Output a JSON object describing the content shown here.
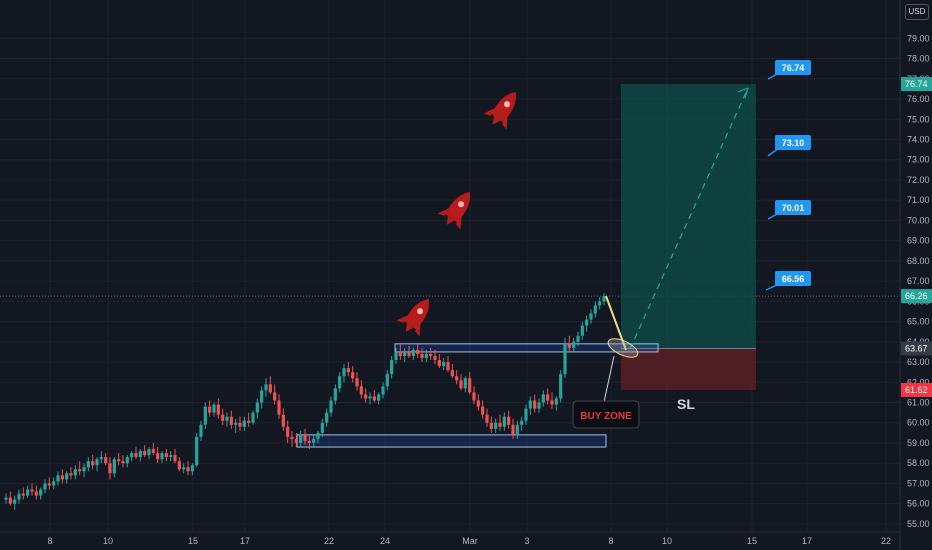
{
  "currency": "USD",
  "colors": {
    "background": "#131722",
    "grid": "#1e222d",
    "axis_text": "#b2b5be",
    "up_candle": "#26a69a",
    "down_candle": "#ef5350",
    "zone_fill": "#2962ff",
    "zone_border": "#9cc4ec",
    "target_box": "#0e4f4a",
    "stop_box": "#5a1f24",
    "label_bg": "#2196f3",
    "last_price": "#26a69a",
    "stop_price": "#f23645",
    "rocket": "#b71c1c",
    "pointer_line": "#f2d98c"
  },
  "chart_data": {
    "type": "candlestick",
    "price_axis_ticks": [
      "79.00",
      "78.00",
      "77.00",
      "76.00",
      "75.00",
      "74.00",
      "73.00",
      "72.00",
      "71.00",
      "70.00",
      "69.00",
      "68.00",
      "67.00",
      "66.00",
      "65.00",
      "64.00",
      "63.00",
      "62.00",
      "61.00",
      "60.00",
      "59.00",
      "58.00",
      "57.00",
      "56.00",
      "55.00"
    ],
    "time_axis_labels": [
      "8",
      "10",
      "15",
      "17",
      "22",
      "24",
      "Mar",
      "3",
      "8",
      "10",
      "15",
      "17",
      "22"
    ],
    "ylim": [
      54.6,
      80.4
    ],
    "last_price": "66.26",
    "entry_price": "63.67",
    "stop_price": "61.62",
    "target_price": "76.74",
    "target_labels": [
      "76.74",
      "73.10",
      "70.01",
      "66.56"
    ],
    "buy_zone_label": "BUY ZONE",
    "stop_label": "SL",
    "annotations": {
      "buy_zone_range": [
        63.5,
        63.9
      ],
      "support_range": [
        58.8,
        59.4
      ]
    },
    "candles": [
      [
        56.2,
        56.5,
        56.0,
        56.3
      ],
      [
        56.3,
        56.6,
        55.9,
        56.0
      ],
      [
        56.0,
        56.4,
        55.7,
        56.2
      ],
      [
        56.2,
        56.7,
        56.0,
        56.5
      ],
      [
        56.5,
        56.8,
        56.2,
        56.4
      ],
      [
        56.4,
        56.9,
        56.3,
        56.7
      ],
      [
        56.7,
        57.0,
        56.4,
        56.6
      ],
      [
        56.6,
        56.9,
        56.2,
        56.4
      ],
      [
        56.4,
        56.8,
        56.2,
        56.7
      ],
      [
        56.7,
        57.2,
        56.5,
        57.0
      ],
      [
        57.0,
        57.3,
        56.7,
        56.9
      ],
      [
        56.9,
        57.3,
        56.7,
        57.1
      ],
      [
        57.1,
        57.6,
        56.9,
        57.4
      ],
      [
        57.4,
        57.7,
        57.0,
        57.2
      ],
      [
        57.2,
        57.6,
        57.0,
        57.5
      ],
      [
        57.5,
        57.8,
        57.2,
        57.4
      ],
      [
        57.4,
        57.9,
        57.2,
        57.7
      ],
      [
        57.7,
        58.1,
        57.4,
        57.6
      ],
      [
        57.6,
        58.0,
        57.3,
        57.8
      ],
      [
        57.8,
        58.3,
        57.6,
        58.1
      ],
      [
        58.1,
        58.4,
        57.7,
        57.9
      ],
      [
        57.9,
        58.3,
        57.6,
        58.2
      ],
      [
        58.2,
        58.6,
        58.0,
        58.3
      ],
      [
        58.3,
        58.5,
        57.9,
        58.0
      ],
      [
        58.0,
        58.3,
        57.2,
        57.5
      ],
      [
        57.5,
        58.3,
        57.3,
        58.2
      ],
      [
        58.2,
        58.5,
        57.9,
        58.1
      ],
      [
        58.1,
        58.4,
        57.8,
        58.0
      ],
      [
        58.0,
        58.4,
        57.8,
        58.3
      ],
      [
        58.3,
        58.6,
        58.1,
        58.5
      ],
      [
        58.5,
        58.8,
        58.2,
        58.3
      ],
      [
        58.3,
        58.7,
        58.1,
        58.6
      ],
      [
        58.6,
        58.9,
        58.3,
        58.4
      ],
      [
        58.4,
        58.8,
        58.2,
        58.7
      ],
      [
        58.7,
        59.0,
        58.4,
        58.5
      ],
      [
        58.5,
        58.8,
        58.0,
        58.2
      ],
      [
        58.2,
        58.6,
        58.0,
        58.5
      ],
      [
        58.5,
        58.7,
        58.1,
        58.3
      ],
      [
        58.3,
        58.6,
        58.1,
        58.4
      ],
      [
        58.4,
        58.7,
        58.0,
        58.1
      ],
      [
        58.1,
        58.3,
        57.6,
        57.7
      ],
      [
        57.7,
        58.0,
        57.5,
        57.8
      ],
      [
        57.8,
        58.1,
        57.4,
        57.6
      ],
      [
        57.6,
        58.0,
        57.4,
        57.9
      ],
      [
        57.9,
        59.5,
        57.8,
        59.3
      ],
      [
        59.3,
        60.1,
        59.1,
        59.9
      ],
      [
        59.9,
        61.0,
        59.7,
        60.8
      ],
      [
        60.8,
        61.1,
        60.3,
        60.5
      ],
      [
        60.5,
        61.0,
        60.3,
        60.9
      ],
      [
        60.9,
        61.2,
        60.2,
        60.4
      ],
      [
        60.4,
        60.7,
        59.9,
        60.1
      ],
      [
        60.1,
        60.5,
        59.8,
        60.3
      ],
      [
        60.3,
        60.6,
        59.7,
        59.9
      ],
      [
        59.9,
        60.2,
        59.5,
        60.0
      ],
      [
        60.0,
        60.3,
        59.6,
        59.8
      ],
      [
        59.8,
        60.3,
        59.6,
        60.1
      ],
      [
        60.1,
        60.5,
        59.8,
        60.0
      ],
      [
        60.0,
        60.6,
        59.9,
        60.5
      ],
      [
        60.5,
        61.2,
        60.2,
        61.0
      ],
      [
        61.0,
        61.8,
        60.7,
        61.6
      ],
      [
        61.6,
        62.2,
        61.3,
        61.9
      ],
      [
        61.9,
        62.3,
        61.4,
        61.5
      ],
      [
        61.5,
        61.9,
        60.9,
        61.1
      ],
      [
        61.1,
        61.4,
        60.2,
        60.4
      ],
      [
        60.4,
        60.7,
        59.6,
        59.8
      ],
      [
        59.8,
        60.1,
        59.0,
        59.3
      ],
      [
        59.3,
        59.6,
        58.8,
        59.2
      ],
      [
        59.2,
        59.5,
        58.8,
        59.0
      ],
      [
        59.0,
        59.6,
        58.8,
        59.4
      ],
      [
        59.4,
        59.7,
        58.9,
        59.1
      ],
      [
        59.1,
        59.4,
        58.7,
        59.0
      ],
      [
        59.0,
        59.4,
        58.8,
        59.2
      ],
      [
        59.2,
        59.6,
        59.0,
        59.5
      ],
      [
        59.5,
        60.2,
        59.3,
        60.0
      ],
      [
        60.0,
        60.7,
        59.8,
        60.5
      ],
      [
        60.5,
        61.3,
        60.3,
        61.1
      ],
      [
        61.1,
        61.9,
        60.9,
        61.7
      ],
      [
        61.7,
        62.5,
        61.5,
        62.3
      ],
      [
        62.3,
        62.9,
        62.0,
        62.7
      ],
      [
        62.7,
        63.0,
        62.3,
        62.5
      ],
      [
        62.5,
        62.8,
        62.0,
        62.2
      ],
      [
        62.2,
        62.5,
        61.6,
        61.8
      ],
      [
        61.8,
        62.1,
        61.2,
        61.4
      ],
      [
        61.4,
        61.7,
        61.0,
        61.2
      ],
      [
        61.2,
        61.5,
        60.9,
        61.3
      ],
      [
        61.3,
        61.6,
        61.0,
        61.1
      ],
      [
        61.1,
        61.5,
        60.9,
        61.4
      ],
      [
        61.4,
        62.0,
        61.2,
        61.8
      ],
      [
        61.8,
        62.6,
        61.6,
        62.4
      ],
      [
        62.4,
        63.3,
        62.2,
        63.1
      ],
      [
        63.1,
        63.7,
        62.9,
        63.5
      ],
      [
        63.5,
        63.9,
        63.1,
        63.3
      ],
      [
        63.3,
        63.7,
        63.0,
        63.5
      ],
      [
        63.5,
        63.8,
        63.2,
        63.3
      ],
      [
        63.3,
        63.7,
        63.1,
        63.6
      ],
      [
        63.6,
        63.9,
        63.2,
        63.4
      ],
      [
        63.4,
        63.7,
        63.0,
        63.2
      ],
      [
        63.2,
        63.6,
        63.0,
        63.4
      ],
      [
        63.4,
        63.7,
        63.1,
        63.3
      ],
      [
        63.3,
        63.6,
        62.9,
        63.1
      ],
      [
        63.1,
        63.4,
        62.7,
        62.8
      ],
      [
        62.8,
        63.2,
        62.6,
        63.0
      ],
      [
        63.0,
        63.3,
        62.5,
        62.6
      ],
      [
        62.6,
        62.9,
        62.2,
        62.3
      ],
      [
        62.3,
        62.6,
        61.9,
        62.1
      ],
      [
        62.1,
        62.4,
        61.6,
        61.7
      ],
      [
        61.7,
        62.3,
        61.5,
        62.2
      ],
      [
        62.2,
        62.5,
        61.4,
        61.5
      ],
      [
        61.5,
        61.8,
        60.9,
        61.1
      ],
      [
        61.1,
        61.4,
        60.6,
        60.8
      ],
      [
        60.8,
        61.1,
        60.2,
        60.4
      ],
      [
        60.4,
        60.7,
        59.8,
        60.0
      ],
      [
        60.0,
        60.3,
        59.5,
        59.7
      ],
      [
        59.7,
        60.2,
        59.5,
        60.0
      ],
      [
        60.0,
        60.4,
        59.6,
        59.8
      ],
      [
        59.8,
        60.5,
        59.6,
        60.3
      ],
      [
        60.3,
        60.6,
        59.7,
        59.9
      ],
      [
        59.9,
        60.2,
        59.2,
        59.4
      ],
      [
        59.4,
        60.1,
        59.2,
        59.9
      ],
      [
        59.9,
        60.3,
        59.6,
        60.1
      ],
      [
        60.1,
        60.9,
        59.9,
        60.7
      ],
      [
        60.7,
        61.3,
        60.4,
        61.1
      ],
      [
        61.1,
        61.4,
        60.5,
        60.7
      ],
      [
        60.7,
        61.2,
        60.5,
        61.0
      ],
      [
        61.0,
        61.6,
        60.8,
        61.4
      ],
      [
        61.4,
        61.7,
        60.9,
        61.1
      ],
      [
        61.1,
        61.5,
        60.7,
        60.9
      ],
      [
        60.9,
        61.3,
        60.6,
        61.2
      ],
      [
        61.2,
        62.6,
        61.0,
        62.4
      ],
      [
        62.4,
        64.2,
        62.2,
        63.9
      ],
      [
        63.9,
        64.3,
        63.5,
        63.7
      ],
      [
        63.7,
        64.2,
        63.5,
        64.0
      ],
      [
        64.0,
        64.5,
        63.8,
        64.3
      ],
      [
        64.3,
        65.0,
        64.1,
        64.8
      ],
      [
        64.8,
        65.3,
        64.5,
        65.1
      ],
      [
        65.1,
        65.6,
        64.9,
        65.4
      ],
      [
        65.4,
        66.0,
        65.2,
        65.8
      ],
      [
        65.8,
        66.2,
        65.6,
        66.0
      ],
      [
        66.0,
        66.4,
        65.8,
        66.26
      ]
    ]
  }
}
